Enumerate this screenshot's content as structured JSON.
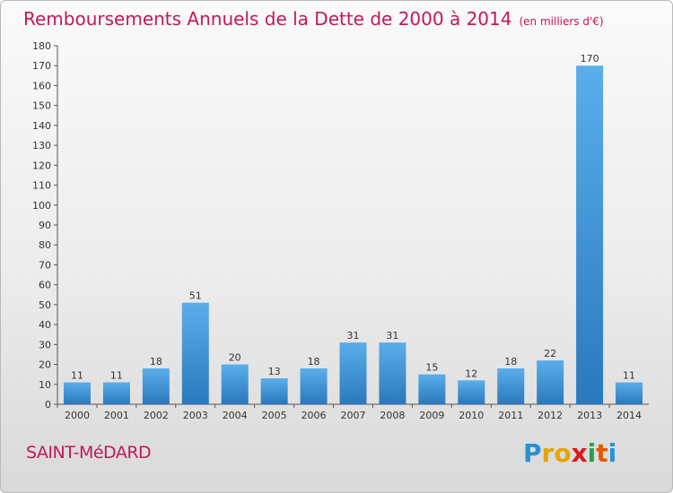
{
  "header": {
    "title": "Remboursements Annuels de la Dette de 2000 à 2014",
    "unit": "(en milliers d'€)"
  },
  "footer": {
    "commune": "SAINT-MéDARD",
    "logo_text": "Proxiti"
  },
  "colors": {
    "title": "#c2185b",
    "bar_top": "#5aaeea",
    "bar_bottom": "#2a78bd",
    "axis": "#555555"
  },
  "chart_data": {
    "type": "bar",
    "title": "Remboursements Annuels de la Dette de 2000 à 2014",
    "subtitle": "(en milliers d'€)",
    "xlabel": "",
    "ylabel": "",
    "categories": [
      "2000",
      "2001",
      "2002",
      "2003",
      "2004",
      "2005",
      "2006",
      "2007",
      "2008",
      "2009",
      "2010",
      "2011",
      "2012",
      "2013",
      "2014"
    ],
    "values": [
      11,
      11,
      18,
      51,
      20,
      13,
      18,
      31,
      31,
      15,
      12,
      18,
      22,
      170,
      11
    ],
    "ylim": [
      0,
      180
    ],
    "yticks": [
      0,
      10,
      20,
      30,
      40,
      50,
      60,
      70,
      80,
      90,
      100,
      110,
      120,
      130,
      140,
      150,
      160,
      170,
      180
    ],
    "grid": false,
    "legend": "none"
  }
}
